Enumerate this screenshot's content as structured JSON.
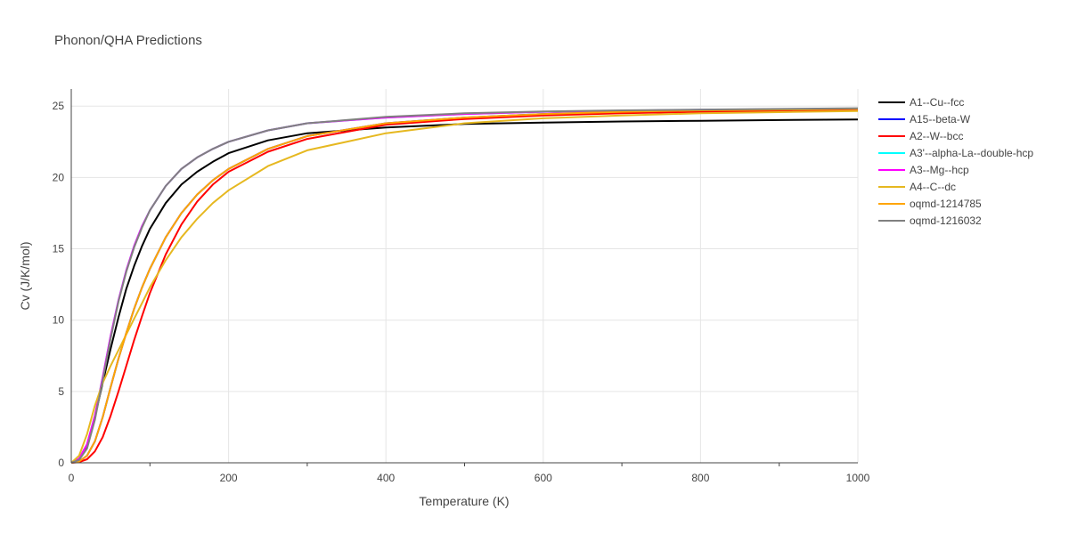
{
  "chart_data": {
    "type": "line",
    "title": "Phonon/QHA Predictions",
    "xlabel": "Temperature (K)",
    "ylabel": "Cv (J/K/mol)",
    "xlim": [
      0,
      1000
    ],
    "ylim": [
      0,
      26.2
    ],
    "xticks": [
      0,
      200,
      400,
      600,
      800,
      1000
    ],
    "yticks": [
      0,
      5,
      10,
      15,
      20,
      25
    ],
    "grid": true,
    "legend_position": "right",
    "series": [
      {
        "name": "A1--Cu--fcc",
        "color": "#000000",
        "x": [
          0,
          10,
          20,
          30,
          40,
          50,
          60,
          70,
          80,
          90,
          100,
          120,
          140,
          160,
          180,
          200,
          250,
          300,
          400,
          500,
          600,
          700,
          800,
          900,
          1000
        ],
        "y": [
          0,
          0.2,
          1.2,
          3.2,
          5.6,
          8.0,
          10.2,
          12.2,
          13.8,
          15.2,
          16.4,
          18.2,
          19.5,
          20.4,
          21.1,
          21.7,
          22.6,
          23.1,
          23.5,
          23.75,
          23.85,
          23.92,
          23.97,
          24.02,
          24.06
        ]
      },
      {
        "name": "A15--beta-W",
        "color": "#0000ff",
        "x": [
          0,
          10,
          20,
          30,
          40,
          50,
          60,
          70,
          80,
          90,
          100,
          120,
          140,
          160,
          180,
          200,
          250,
          300,
          400,
          500,
          600,
          700,
          800,
          900,
          1000
        ],
        "y": [
          0,
          0.1,
          0.5,
          1.5,
          3.2,
          5.3,
          7.3,
          9.1,
          10.8,
          12.3,
          13.6,
          15.8,
          17.5,
          18.8,
          19.8,
          20.6,
          22.0,
          22.9,
          23.8,
          24.2,
          24.45,
          24.6,
          24.7,
          24.75,
          24.8
        ]
      },
      {
        "name": "A2--W--bcc",
        "color": "#ff0000",
        "x": [
          0,
          10,
          20,
          30,
          40,
          50,
          60,
          70,
          80,
          90,
          100,
          120,
          140,
          160,
          180,
          200,
          250,
          300,
          400,
          500,
          600,
          700,
          800,
          900,
          1000
        ],
        "y": [
          0,
          0.05,
          0.25,
          0.8,
          1.8,
          3.3,
          5.0,
          6.8,
          8.6,
          10.3,
          11.9,
          14.6,
          16.7,
          18.3,
          19.5,
          20.4,
          21.8,
          22.7,
          23.7,
          24.1,
          24.35,
          24.5,
          24.6,
          24.65,
          24.7
        ]
      },
      {
        "name": "A3'--alpha-La--double-hcp",
        "color": "#00ffff",
        "x": [
          0,
          10,
          20,
          30,
          40,
          50,
          60,
          70,
          80,
          90,
          100,
          120,
          140,
          160,
          180,
          200,
          250,
          300,
          400,
          500,
          600,
          700,
          800,
          900,
          1000
        ],
        "y": [
          0,
          0.3,
          1.3,
          3.3,
          6.0,
          8.9,
          11.4,
          13.5,
          15.2,
          16.6,
          17.7,
          19.4,
          20.6,
          21.4,
          22.0,
          22.5,
          23.3,
          23.8,
          24.2,
          24.45,
          24.6,
          24.68,
          24.74,
          24.78,
          24.82
        ]
      },
      {
        "name": "A3--Mg--hcp",
        "color": "#ff00ff",
        "x": [
          0,
          10,
          20,
          30,
          40,
          50,
          60,
          70,
          80,
          90,
          100,
          120,
          140,
          160,
          180,
          200,
          250,
          300,
          400,
          500,
          600,
          700,
          800,
          900,
          1000
        ],
        "y": [
          0,
          0.3,
          1.3,
          3.3,
          6.0,
          8.9,
          11.4,
          13.5,
          15.2,
          16.6,
          17.7,
          19.4,
          20.6,
          21.4,
          22.0,
          22.5,
          23.3,
          23.8,
          24.2,
          24.45,
          24.6,
          24.68,
          24.74,
          24.78,
          24.82
        ]
      },
      {
        "name": "A4--C--dc",
        "color": "#e6b820",
        "x": [
          0,
          10,
          20,
          30,
          40,
          50,
          60,
          70,
          80,
          90,
          100,
          120,
          140,
          160,
          180,
          200,
          250,
          300,
          400,
          500,
          600,
          700,
          800,
          900,
          1000
        ],
        "y": [
          0,
          0.5,
          2.0,
          4.0,
          5.6,
          6.8,
          7.9,
          9.0,
          10.1,
          11.2,
          12.3,
          14.2,
          15.8,
          17.1,
          18.2,
          19.1,
          20.8,
          21.9,
          23.1,
          23.8,
          24.15,
          24.35,
          24.5,
          24.58,
          24.65
        ]
      },
      {
        "name": "oqmd-1214785",
        "color": "#ffa500",
        "x": [
          0,
          10,
          20,
          30,
          40,
          50,
          60,
          70,
          80,
          90,
          100,
          120,
          140,
          160,
          180,
          200,
          250,
          300,
          400,
          500,
          600,
          700,
          800,
          900,
          1000
        ],
        "y": [
          0,
          0.1,
          0.5,
          1.5,
          3.2,
          5.3,
          7.3,
          9.1,
          10.8,
          12.3,
          13.6,
          15.8,
          17.5,
          18.8,
          19.8,
          20.6,
          22.0,
          22.9,
          23.8,
          24.2,
          24.45,
          24.6,
          24.7,
          24.75,
          24.8
        ]
      },
      {
        "name": "oqmd-1216032",
        "color": "#808080",
        "x": [
          0,
          10,
          20,
          30,
          40,
          50,
          60,
          70,
          80,
          90,
          100,
          120,
          140,
          160,
          180,
          200,
          250,
          300,
          400,
          500,
          600,
          700,
          800,
          900,
          1000
        ],
        "y": [
          0,
          0.2,
          1.0,
          3.0,
          5.8,
          8.7,
          11.3,
          13.4,
          15.1,
          16.5,
          17.7,
          19.4,
          20.6,
          21.4,
          22.0,
          22.5,
          23.3,
          23.8,
          24.25,
          24.5,
          24.62,
          24.7,
          24.76,
          24.8,
          24.85
        ]
      }
    ]
  }
}
